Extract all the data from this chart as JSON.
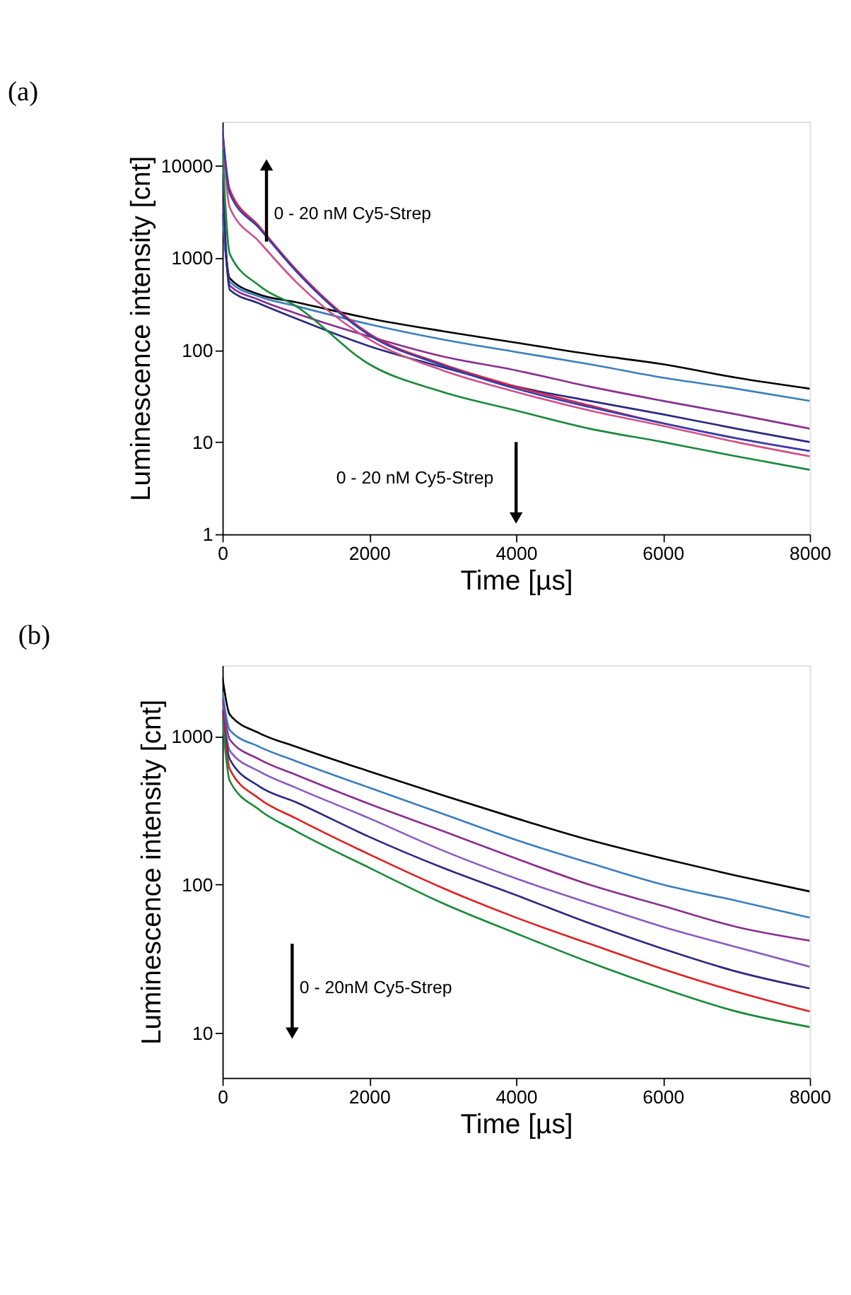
{
  "chart_data": [
    {
      "type": "line",
      "title": "(a)",
      "xlabel": "Time [µs]",
      "ylabel": "Luminescence intensity [cnt]",
      "log": "y",
      "grid": false,
      "marker": "none",
      "line_style": "solid",
      "xlim": [
        0,
        8000
      ],
      "xticks": [
        0,
        2000,
        4000,
        6000,
        8000
      ],
      "ylim": [
        1,
        30000
      ],
      "yticks": [
        1,
        10,
        100,
        1000,
        10000
      ],
      "x": [
        0,
        100,
        500,
        1000,
        2000,
        3000,
        4000,
        5000,
        6000,
        7000,
        8000
      ],
      "series": [
        {
          "color": "#000000",
          "values": [
            3000,
            600,
            400,
            330,
            220,
            160,
            120,
            90,
            70,
            50,
            38
          ]
        },
        {
          "color": "#3a7ebf",
          "values": [
            3000,
            550,
            380,
            300,
            190,
            130,
            95,
            70,
            50,
            38,
            28
          ]
        },
        {
          "color": "#8a2f8f",
          "values": [
            5000,
            500,
            350,
            250,
            140,
            85,
            60,
            40,
            28,
            20,
            14
          ]
        },
        {
          "color": "#2b2a80",
          "values": [
            8000,
            450,
            320,
            220,
            110,
            65,
            40,
            28,
            20,
            14,
            10
          ]
        },
        {
          "color": "#d0508a",
          "values": [
            20000,
            3500,
            1500,
            550,
            130,
            60,
            35,
            22,
            15,
            10,
            7
          ]
        },
        {
          "color": "#1a8a3a",
          "values": [
            15000,
            1100,
            500,
            300,
            70,
            35,
            22,
            14,
            10,
            7,
            5
          ]
        },
        {
          "color": "#e02040",
          "values": [
            25000,
            5500,
            2200,
            750,
            150,
            70,
            40,
            25,
            16,
            11,
            8
          ]
        },
        {
          "color": "#3040b0",
          "values": [
            25000,
            5000,
            2100,
            720,
            145,
            68,
            38,
            24,
            16,
            11,
            8
          ]
        }
      ],
      "annotations": [
        "0 - 20 nM Cy5-Strep",
        "0 - 20 nM Cy5-Strep"
      ]
    },
    {
      "type": "line",
      "title": "(b)",
      "xlabel": "Time [µs]",
      "ylabel": "Luminescence intensity [cnt]",
      "log": "y",
      "grid": false,
      "marker": "none",
      "line_style": "solid",
      "xlim": [
        0,
        8000
      ],
      "xticks": [
        0,
        2000,
        4000,
        6000,
        8000
      ],
      "ylim": [
        5,
        3000
      ],
      "yticks": [
        10,
        100,
        1000
      ],
      "x": [
        0,
        100,
        500,
        1000,
        2000,
        3000,
        4000,
        5000,
        6000,
        7000,
        8000
      ],
      "series": [
        {
          "color": "#000000",
          "values": [
            2500,
            1400,
            1050,
            850,
            580,
            400,
            280,
            200,
            150,
            115,
            90
          ]
        },
        {
          "color": "#3a7ebf",
          "values": [
            2000,
            1100,
            850,
            680,
            450,
            300,
            200,
            140,
            100,
            78,
            60
          ]
        },
        {
          "color": "#8a2f8f",
          "values": [
            1800,
            950,
            700,
            550,
            350,
            230,
            150,
            100,
            72,
            52,
            42
          ]
        },
        {
          "color": "#8a5cc0",
          "values": [
            1600,
            800,
            580,
            450,
            280,
            170,
            110,
            75,
            52,
            38,
            28
          ]
        },
        {
          "color": "#2b2a80",
          "values": [
            1500,
            700,
            460,
            360,
            210,
            130,
            85,
            55,
            37,
            26,
            20
          ]
        },
        {
          "color": "#e02020",
          "values": [
            1400,
            600,
            380,
            280,
            160,
            95,
            60,
            40,
            27,
            19,
            14
          ]
        },
        {
          "color": "#1a8a3a",
          "values": [
            1300,
            500,
            320,
            230,
            130,
            75,
            47,
            30,
            20,
            14,
            11
          ]
        }
      ],
      "annotations": [
        "0 - 20nM Cy5-Strep"
      ]
    }
  ]
}
